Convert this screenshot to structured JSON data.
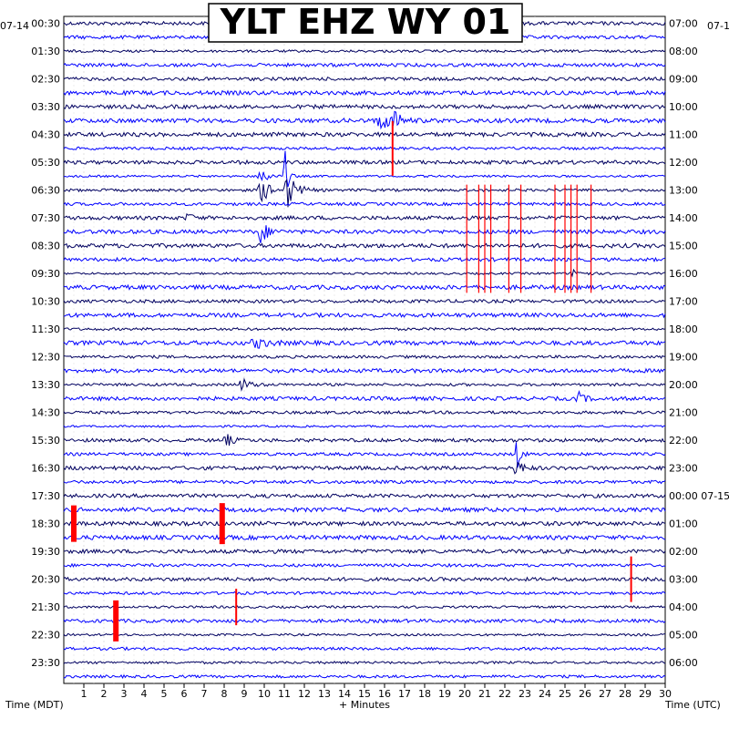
{
  "chart_data": {
    "type": "line",
    "title": "YLT EHZ WY 01",
    "xlabel": "+ Minutes",
    "ylabel_left": "Time (MDT)",
    "ylabel_right": "Time (UTC)",
    "date_left": "07-14",
    "date_right": "07-1",
    "date_change_label": "07-15",
    "xlim": [
      0,
      30
    ],
    "x_ticks": [
      "1",
      "2",
      "3",
      "4",
      "5",
      "6",
      "7",
      "8",
      "9",
      "10",
      "11",
      "12",
      "13",
      "14",
      "15",
      "16",
      "17",
      "18",
      "19",
      "20",
      "21",
      "22",
      "23",
      "24",
      "25",
      "26",
      "27",
      "28",
      "29",
      "30"
    ],
    "trace_colors": [
      "#000060",
      "#0000ff"
    ],
    "clip_color": "#ff0000",
    "grid": true,
    "rows": 48,
    "left_labels": [
      "00:30",
      "01:30",
      "02:30",
      "03:30",
      "04:30",
      "05:30",
      "06:30",
      "07:30",
      "08:30",
      "09:30",
      "10:30",
      "11:30",
      "12:30",
      "13:30",
      "14:30",
      "15:30",
      "16:30",
      "17:30",
      "18:30",
      "19:30",
      "20:30",
      "21:30",
      "22:30",
      "23:30"
    ],
    "right_labels": [
      "07:00",
      "08:00",
      "09:00",
      "10:00",
      "11:00",
      "12:00",
      "13:00",
      "14:00",
      "15:00",
      "16:00",
      "17:00",
      "18:00",
      "19:00",
      "20:00",
      "21:00",
      "22:00",
      "23:00",
      "00:00",
      "01:00",
      "02:00",
      "03:00",
      "04:00",
      "05:00",
      "06:00"
    ],
    "events": [
      {
        "row": 7,
        "minute": 15.8,
        "amp": 9,
        "width": 1.2
      },
      {
        "row": 7,
        "minute": 16.5,
        "amp": 14,
        "width": 0.4
      },
      {
        "row": 9,
        "minute": 16.4,
        "amp": 60,
        "width": 0.1,
        "clip": true
      },
      {
        "row": 11,
        "minute": 9.8,
        "amp": 18,
        "width": 0.5
      },
      {
        "row": 11,
        "minute": 11.0,
        "amp": 40,
        "width": 0.3
      },
      {
        "row": 12,
        "minute": 9.9,
        "amp": 12,
        "width": 1.0
      },
      {
        "row": 12,
        "minute": 11.2,
        "amp": 20,
        "width": 0.8
      },
      {
        "row": 14,
        "minute": 6.2,
        "amp": 5,
        "width": 0.5
      },
      {
        "row": 15,
        "minute": 9.8,
        "amp": 14,
        "width": 0.7
      },
      {
        "row": 18,
        "minute": 25.5,
        "amp": 6,
        "width": 0.8
      },
      {
        "row": 23,
        "minute": 9.6,
        "amp": 5,
        "width": 1.2
      },
      {
        "row": 26,
        "minute": 8.9,
        "amp": 7,
        "width": 0.8
      },
      {
        "row": 27,
        "minute": 25.7,
        "amp": 6,
        "width": 0.6
      },
      {
        "row": 30,
        "minute": 8.1,
        "amp": 7,
        "width": 0.6
      },
      {
        "row": 31,
        "minute": 22.6,
        "amp": 24,
        "width": 0.3
      },
      {
        "row": 32,
        "minute": 22.6,
        "amp": 10,
        "width": 0.6
      },
      {
        "row": 36,
        "minute": 0.5,
        "amp": 40,
        "width": 0.2,
        "clip": true
      },
      {
        "row": 36,
        "minute": 7.9,
        "amp": 45,
        "width": 0.3,
        "clip": true
      },
      {
        "row": 40,
        "minute": 28.3,
        "amp": 50,
        "width": 0.1,
        "clip": true
      },
      {
        "row": 43,
        "minute": 2.6,
        "amp": 45,
        "width": 0.2,
        "clip": true
      },
      {
        "row": 42,
        "minute": 8.6,
        "amp": 40,
        "width": 0.1,
        "clip": true
      }
    ]
  }
}
